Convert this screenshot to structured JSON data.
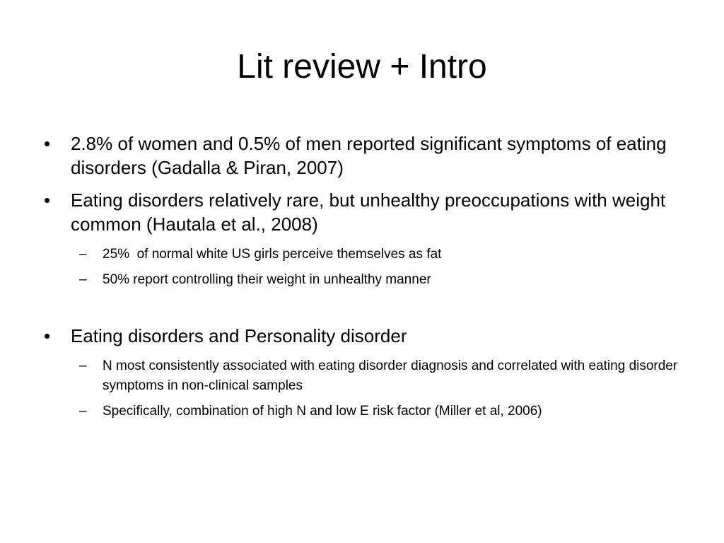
{
  "slide": {
    "title": "Lit review + Intro",
    "bullet_symbol": "•",
    "dash_symbol": "–",
    "items": [
      {
        "level": 1,
        "text": "2.8% of women and 0.5% of men reported significant symptoms of eating disorders (Gadalla & Piran, 2007)"
      },
      {
        "level": 1,
        "text": "Eating disorders relatively rare, but unhealthy preoccupations with weight common (Hautala et al., 2008)"
      },
      {
        "level": 2,
        "text": "25%  of normal white US girls perceive themselves as fat"
      },
      {
        "level": 2,
        "text": "50% report controlling their weight in unhealthy manner"
      },
      {
        "level": 1,
        "text": "Eating disorders and Personality disorder"
      },
      {
        "level": 2,
        "text": "N most consistently associated with eating disorder diagnosis and correlated with eating disorder symptoms in non-clinical samples"
      },
      {
        "level": 2,
        "text": "Specifically, combination of high N and low E risk factor (Miller et al, 2006)"
      }
    ]
  }
}
